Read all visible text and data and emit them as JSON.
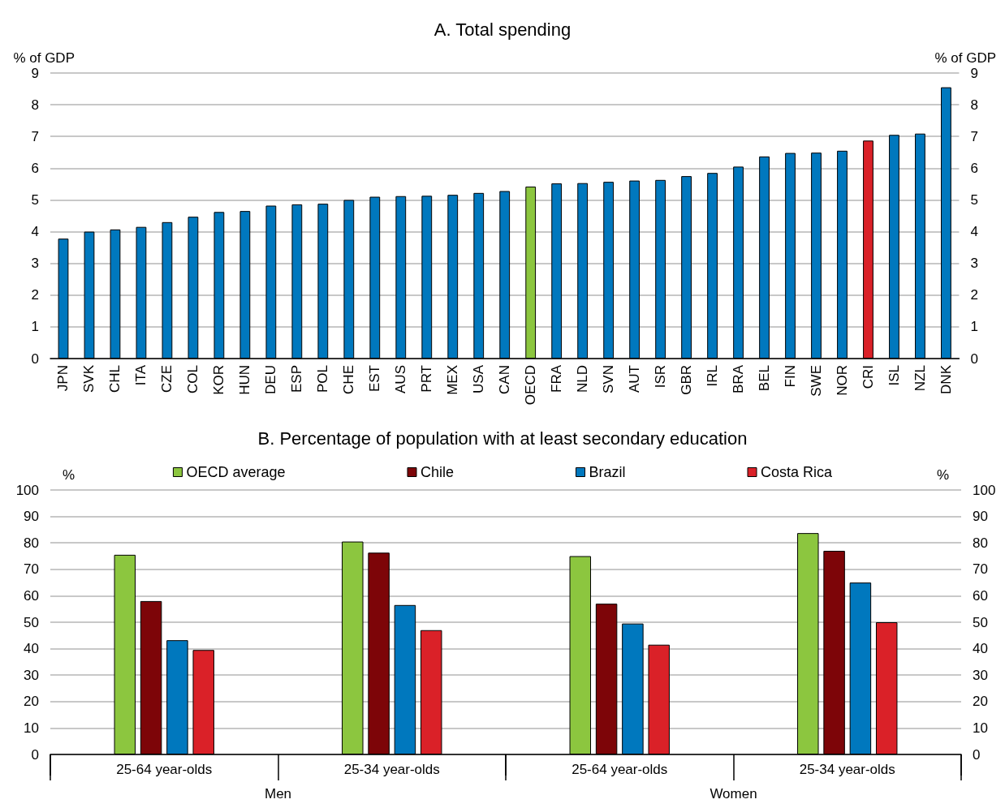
{
  "chart_data": [
    {
      "type": "bar",
      "title": "A. Total spending",
      "ylabel": "% of GDP",
      "y2label": "% of GDP",
      "categories": [
        "JPN",
        "SVK",
        "CHL",
        "ITA",
        "CZE",
        "COL",
        "KOR",
        "HUN",
        "DEU",
        "ESP",
        "POL",
        "CHE",
        "EST",
        "AUS",
        "PRT",
        "MEX",
        "USA",
        "CAN",
        "OECD",
        "FRA",
        "NLD",
        "SVN",
        "AUT",
        "ISR",
        "GBR",
        "IRL",
        "BRA",
        "BEL",
        "FIN",
        "SWE",
        "NOR",
        "CRI",
        "ISL",
        "NZL",
        "DNK"
      ],
      "values": [
        3.78,
        4.0,
        4.07,
        4.15,
        4.3,
        4.47,
        4.62,
        4.65,
        4.82,
        4.86,
        4.88,
        5.0,
        5.1,
        5.12,
        5.13,
        5.16,
        5.22,
        5.28,
        5.42,
        5.52,
        5.53,
        5.57,
        5.61,
        5.63,
        5.75,
        5.85,
        6.05,
        6.37,
        6.48,
        6.49,
        6.55,
        6.87,
        7.05,
        7.09,
        8.55
      ],
      "colors": [
        "#0078be",
        "#0078be",
        "#0078be",
        "#0078be",
        "#0078be",
        "#0078be",
        "#0078be",
        "#0078be",
        "#0078be",
        "#0078be",
        "#0078be",
        "#0078be",
        "#0078be",
        "#0078be",
        "#0078be",
        "#0078be",
        "#0078be",
        "#0078be",
        "#8cc63f",
        "#0078be",
        "#0078be",
        "#0078be",
        "#0078be",
        "#0078be",
        "#0078be",
        "#0078be",
        "#0078be",
        "#0078be",
        "#0078be",
        "#0078be",
        "#0078be",
        "#da2128",
        "#0078be",
        "#0078be",
        "#0078be"
      ],
      "ylim": [
        0,
        9
      ],
      "yticks": [
        0,
        1,
        2,
        3,
        4,
        5,
        6,
        7,
        8,
        9
      ],
      "y2lim": [
        0,
        9
      ],
      "y2ticks": [
        0,
        1,
        2,
        3,
        4,
        5,
        6,
        7,
        8,
        9
      ],
      "grid": "y",
      "legend": false
    },
    {
      "type": "bar",
      "title": "B. Percentage of population with at least secondary education",
      "ylabel": "%",
      "y2label": "%",
      "categories": [
        "25-64 year-olds",
        "25-34 year-olds",
        "25-64 year-olds",
        "25-34 year-olds"
      ],
      "annotations": [
        "Men",
        "Women"
      ],
      "series": [
        {
          "name": "OECD average",
          "color": "#8cc63f",
          "values": [
            75.5,
            80.5,
            75,
            83.7
          ]
        },
        {
          "name": "Chile",
          "color": "#7d0508",
          "values": [
            58,
            76.3,
            57,
            77
          ]
        },
        {
          "name": "Brazil",
          "color": "#0078be",
          "values": [
            43.2,
            56.5,
            49.5,
            65
          ]
        },
        {
          "name": "Costa Rica",
          "color": "#da2128",
          "values": [
            39.5,
            47,
            41.5,
            50
          ]
        }
      ],
      "ylim": [
        0,
        100
      ],
      "yticks": [
        0,
        10,
        20,
        30,
        40,
        50,
        60,
        70,
        80,
        90,
        100
      ],
      "y2lim": [
        0,
        100
      ],
      "y2ticks": [
        0,
        10,
        20,
        30,
        40,
        50,
        60,
        70,
        80,
        90,
        100
      ],
      "grid": "y",
      "legend": "top"
    }
  ]
}
